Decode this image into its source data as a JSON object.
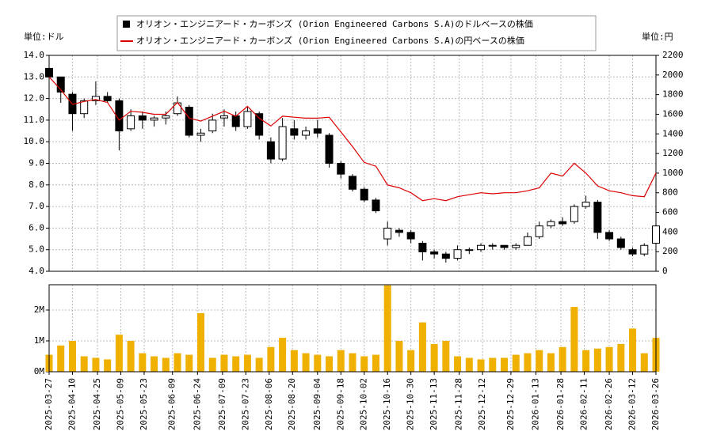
{
  "chart_data": [
    {
      "type": "candlestick",
      "left_unit": "単位:ドル",
      "right_unit": "単位:円",
      "xlim": [
        "2025-03-27",
        "2026-03-26"
      ],
      "x": [
        "2025-03-27",
        "2025-04-03",
        "2025-04-10",
        "2025-04-17",
        "2025-04-24",
        "2025-05-01",
        "2025-05-08",
        "2025-05-15",
        "2025-05-22",
        "2025-05-29",
        "2025-06-05",
        "2025-06-12",
        "2025-06-19",
        "2025-06-26",
        "2025-07-03",
        "2025-07-10",
        "2025-07-17",
        "2025-07-24",
        "2025-07-31",
        "2025-08-07",
        "2025-08-14",
        "2025-08-21",
        "2025-08-28",
        "2025-09-04",
        "2025-09-11",
        "2025-09-18",
        "2025-09-25",
        "2025-10-02",
        "2025-10-09",
        "2025-10-16",
        "2025-10-23",
        "2025-10-30",
        "2025-11-06",
        "2025-11-13",
        "2025-11-20",
        "2025-11-27",
        "2025-12-04",
        "2025-12-11",
        "2025-12-18",
        "2025-12-25",
        "2026-01-01",
        "2026-01-08",
        "2026-01-15",
        "2026-01-22",
        "2026-01-29",
        "2026-02-05",
        "2026-02-12",
        "2026-02-19",
        "2026-02-26",
        "2026-03-05",
        "2026-03-12",
        "2026-03-19",
        "2026-03-26"
      ],
      "ylim": [
        4,
        14
      ],
      "yticks": [
        {
          "value": 4,
          "label": "4.0"
        },
        {
          "value": 5,
          "label": "5.0"
        },
        {
          "value": 6,
          "label": "6.0"
        },
        {
          "value": 7,
          "label": "7.0"
        },
        {
          "value": 8,
          "label": "8.0"
        },
        {
          "value": 9,
          "label": "9.0"
        },
        {
          "value": 10,
          "label": "10.0"
        },
        {
          "value": 11,
          "label": "11.0"
        },
        {
          "value": 12,
          "label": "12.0"
        },
        {
          "value": 13,
          "label": "13.0"
        },
        {
          "value": 14,
          "label": "14.0"
        }
      ],
      "y2lim": [
        0,
        2200
      ],
      "y2ticks": [
        0,
        200,
        400,
        600,
        800,
        1000,
        1200,
        1400,
        1600,
        1800,
        2000,
        2200
      ],
      "grid": true,
      "series": [
        {
          "name": "オリオン・エンジニアード・カーボンズ (Orion Engineered Carbons S.A)のドルベースの株価",
          "color": "#000000",
          "type": "candlestick",
          "open": [
            13.4,
            13.0,
            12.2,
            11.3,
            11.9,
            12.1,
            11.9,
            10.6,
            11.2,
            11.0,
            11.1,
            11.3,
            11.6,
            10.3,
            10.5,
            11.1,
            11.2,
            10.7,
            11.3,
            10.0,
            9.2,
            10.6,
            10.3,
            10.6,
            10.3,
            9.0,
            8.4,
            7.8,
            7.3,
            5.5,
            5.9,
            5.8,
            5.3,
            4.9,
            4.8,
            4.6,
            5.0,
            5.0,
            5.2,
            5.2,
            5.1,
            5.2,
            5.6,
            6.1,
            6.3,
            6.3,
            7.0,
            7.2,
            5.8,
            5.5,
            5.0,
            4.8,
            5.3
          ],
          "high": [
            13.5,
            13.0,
            12.3,
            12.0,
            12.8,
            12.3,
            12.0,
            11.5,
            11.4,
            11.2,
            11.4,
            12.1,
            11.7,
            10.6,
            11.3,
            11.5,
            11.4,
            11.6,
            11.4,
            10.2,
            11.1,
            11.0,
            10.7,
            11.0,
            10.4,
            9.1,
            8.5,
            7.9,
            7.4,
            6.3,
            6.0,
            5.9,
            5.4,
            5.0,
            4.9,
            5.2,
            5.1,
            5.3,
            5.3,
            5.2,
            5.3,
            5.8,
            6.3,
            6.4,
            6.5,
            7.1,
            7.5,
            7.3,
            5.9,
            5.6,
            5.1,
            5.3,
            6.2
          ],
          "low": [
            12.9,
            11.8,
            10.5,
            11.1,
            11.7,
            11.8,
            9.6,
            10.5,
            10.6,
            10.7,
            10.8,
            11.2,
            10.2,
            10.0,
            10.4,
            10.7,
            10.5,
            10.6,
            10.1,
            9.0,
            9.1,
            10.1,
            10.1,
            10.2,
            8.8,
            8.3,
            7.7,
            7.2,
            6.7,
            5.2,
            5.6,
            5.3,
            4.5,
            4.6,
            4.4,
            4.5,
            4.8,
            4.9,
            5.0,
            5.0,
            5.0,
            5.2,
            5.5,
            6.0,
            6.1,
            6.2,
            6.9,
            5.5,
            5.4,
            5.0,
            4.7,
            4.7,
            5.3
          ],
          "close": [
            13.0,
            12.3,
            11.3,
            11.9,
            12.1,
            11.9,
            10.5,
            11.2,
            11.0,
            11.1,
            11.2,
            11.8,
            10.3,
            10.4,
            11.0,
            11.2,
            10.7,
            11.4,
            10.3,
            9.2,
            10.7,
            10.3,
            10.5,
            10.4,
            9.0,
            8.5,
            7.8,
            7.3,
            6.8,
            6.0,
            5.8,
            5.5,
            4.9,
            4.8,
            4.6,
            5.0,
            5.0,
            5.2,
            5.2,
            5.1,
            5.2,
            5.6,
            6.1,
            6.3,
            6.2,
            7.0,
            7.2,
            5.8,
            5.5,
            5.1,
            4.8,
            5.2,
            6.1
          ]
        },
        {
          "name": "オリオン・エンジニアード・カーボンズ (Orion Engineered Carbons S.A)の円ベースの株価",
          "color": "#dd0000",
          "type": "line",
          "axis": "y2",
          "values": [
            1980,
            1850,
            1700,
            1730,
            1750,
            1720,
            1540,
            1630,
            1620,
            1600,
            1600,
            1720,
            1560,
            1530,
            1580,
            1630,
            1580,
            1680,
            1560,
            1480,
            1580,
            1570,
            1560,
            1560,
            1570,
            1420,
            1270,
            1110,
            1070,
            880,
            850,
            800,
            720,
            740,
            720,
            760,
            780,
            800,
            790,
            800,
            800,
            820,
            850,
            1000,
            970,
            1100,
            1000,
            870,
            820,
            800,
            770,
            760,
            1000
          ]
        }
      ]
    },
    {
      "type": "bar",
      "xlim": [
        "2025-03-27",
        "2026-03-26"
      ],
      "x": [
        "2025-03-27",
        "2025-04-03",
        "2025-04-10",
        "2025-04-17",
        "2025-04-24",
        "2025-05-01",
        "2025-05-08",
        "2025-05-15",
        "2025-05-22",
        "2025-05-29",
        "2025-06-05",
        "2025-06-12",
        "2025-06-19",
        "2025-06-26",
        "2025-07-03",
        "2025-07-10",
        "2025-07-17",
        "2025-07-24",
        "2025-07-31",
        "2025-08-07",
        "2025-08-14",
        "2025-08-21",
        "2025-08-28",
        "2025-09-04",
        "2025-09-11",
        "2025-09-18",
        "2025-09-25",
        "2025-10-02",
        "2025-10-09",
        "2025-10-16",
        "2025-10-23",
        "2025-10-30",
        "2025-11-06",
        "2025-11-13",
        "2025-11-20",
        "2025-11-27",
        "2025-12-04",
        "2025-12-11",
        "2025-12-18",
        "2025-12-25",
        "2026-01-01",
        "2026-01-08",
        "2026-01-15",
        "2026-01-22",
        "2026-01-29",
        "2026-02-05",
        "2026-02-12",
        "2026-02-19",
        "2026-02-26",
        "2026-03-05",
        "2026-03-12",
        "2026-03-19",
        "2026-03-26"
      ],
      "values": [
        550000,
        850000,
        1000000,
        500000,
        450000,
        400000,
        1200000,
        1000000,
        600000,
        500000,
        450000,
        600000,
        550000,
        1900000,
        450000,
        550000,
        500000,
        550000,
        450000,
        800000,
        1100000,
        700000,
        600000,
        550000,
        500000,
        700000,
        600000,
        500000,
        550000,
        2800000,
        1000000,
        700000,
        1600000,
        900000,
        1000000,
        500000,
        450000,
        400000,
        450000,
        450000,
        550000,
        600000,
        700000,
        600000,
        800000,
        2100000,
        700000,
        750000,
        800000,
        900000,
        1400000,
        600000,
        1100000
      ],
      "color": "#f0b000",
      "ylim": [
        0,
        2820000
      ],
      "yticks": [
        {
          "value": 0,
          "label": "0M"
        },
        {
          "value": 1000000,
          "label": "1M"
        },
        {
          "value": 2000000,
          "label": "2M"
        }
      ],
      "xticks": [
        "2025-03-27",
        "2025-04-10",
        "2025-04-25",
        "2025-05-09",
        "2025-05-23",
        "2025-06-09",
        "2025-06-24",
        "2025-07-09",
        "2025-07-23",
        "2025-08-06",
        "2025-08-20",
        "2025-09-04",
        "2025-09-18",
        "2025-10-02",
        "2025-10-16",
        "2025-10-30",
        "2025-11-13",
        "2025-11-28",
        "2025-12-12",
        "2025-12-29",
        "2026-01-13",
        "2026-01-28",
        "2026-02-11",
        "2026-02-26",
        "2026-03-12",
        "2026-03-26"
      ],
      "grid": true
    }
  ]
}
